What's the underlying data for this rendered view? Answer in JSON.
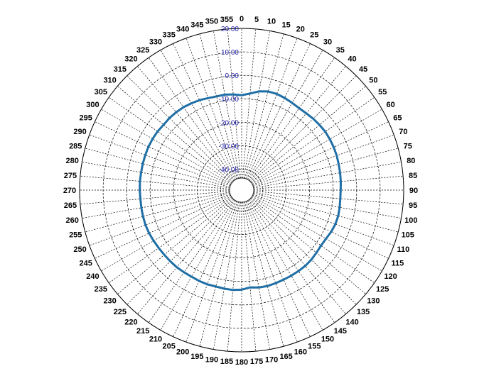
{
  "chart_data": {
    "type": "polar-line",
    "title": "",
    "angle_unit": "degrees",
    "angle_direction": "clockwise",
    "zero_at": "top",
    "angle_tick_labels": [
      "0",
      "5",
      "10",
      "15",
      "20",
      "25",
      "30",
      "35",
      "40",
      "45",
      "50",
      "55",
      "60",
      "65",
      "70",
      "75",
      "80",
      "85",
      "90",
      "95",
      "100",
      "105",
      "110",
      "115",
      "120",
      "125",
      "130",
      "135",
      "140",
      "145",
      "150",
      "155",
      "160",
      "165",
      "170",
      "175",
      "180",
      "185",
      "190",
      "195",
      "200",
      "205",
      "210",
      "215",
      "220",
      "225",
      "230",
      "235",
      "240",
      "245",
      "250",
      "255",
      "260",
      "265",
      "270",
      "275",
      "280",
      "285",
      "290",
      "295",
      "300",
      "305",
      "310",
      "315",
      "320",
      "325",
      "330",
      "335",
      "340",
      "345",
      "350",
      "355"
    ],
    "radial_tick_labels": [
      "-40.00",
      "-30.00",
      "-20.00",
      "-10.00",
      "0.00",
      "10.00",
      "20.00"
    ],
    "rlim": [
      -45,
      20
    ],
    "grid": true,
    "line_color": "#1f6fa6",
    "radial_label_color": "#1f1fa6",
    "series": [
      {
        "angles": [
          0,
          5,
          10,
          15,
          20,
          25,
          30,
          35,
          40,
          45,
          50,
          55,
          60,
          65,
          70,
          75,
          80,
          85,
          90,
          95,
          100,
          105,
          110,
          115,
          120,
          125,
          130,
          135,
          140,
          145,
          150,
          155,
          160,
          165,
          170,
          175,
          180,
          185,
          190,
          195,
          200,
          205,
          210,
          215,
          220,
          225,
          230,
          235,
          240,
          245,
          250,
          255,
          260,
          265,
          270,
          275,
          280,
          285,
          290,
          295,
          300,
          305,
          310,
          315,
          320,
          325,
          330,
          335,
          340,
          345,
          350,
          355
        ],
        "values": [
          -8.5,
          -7.6,
          -6.2,
          -5.4,
          -5.3,
          -5.6,
          -6.0,
          -6.3,
          -6.2,
          -5.9,
          -5.7,
          -5.5,
          -5.6,
          -5.7,
          -5.9,
          -6.2,
          -6.4,
          -6.6,
          -6.8,
          -6.8,
          -6.6,
          -6.4,
          -6.5,
          -6.9,
          -7.5,
          -7.7,
          -7.4,
          -7.0,
          -6.8,
          -6.8,
          -6.8,
          -6.8,
          -6.7,
          -6.6,
          -6.8,
          -7.3,
          -6.5,
          -6.2,
          -6.3,
          -6.4,
          -6.2,
          -6.2,
          -6.3,
          -6.2,
          -6.0,
          -6.0,
          -6.0,
          -5.9,
          -5.7,
          -5.5,
          -5.4,
          -5.5,
          -5.6,
          -5.7,
          -5.6,
          -5.5,
          -5.5,
          -5.4,
          -5.3,
          -5.2,
          -5.2,
          -5.3,
          -5.6,
          -5.5,
          -5.6,
          -5.8,
          -6.2,
          -6.6,
          -7.2,
          -7.6,
          -7.6,
          -8.0
        ]
      }
    ]
  }
}
